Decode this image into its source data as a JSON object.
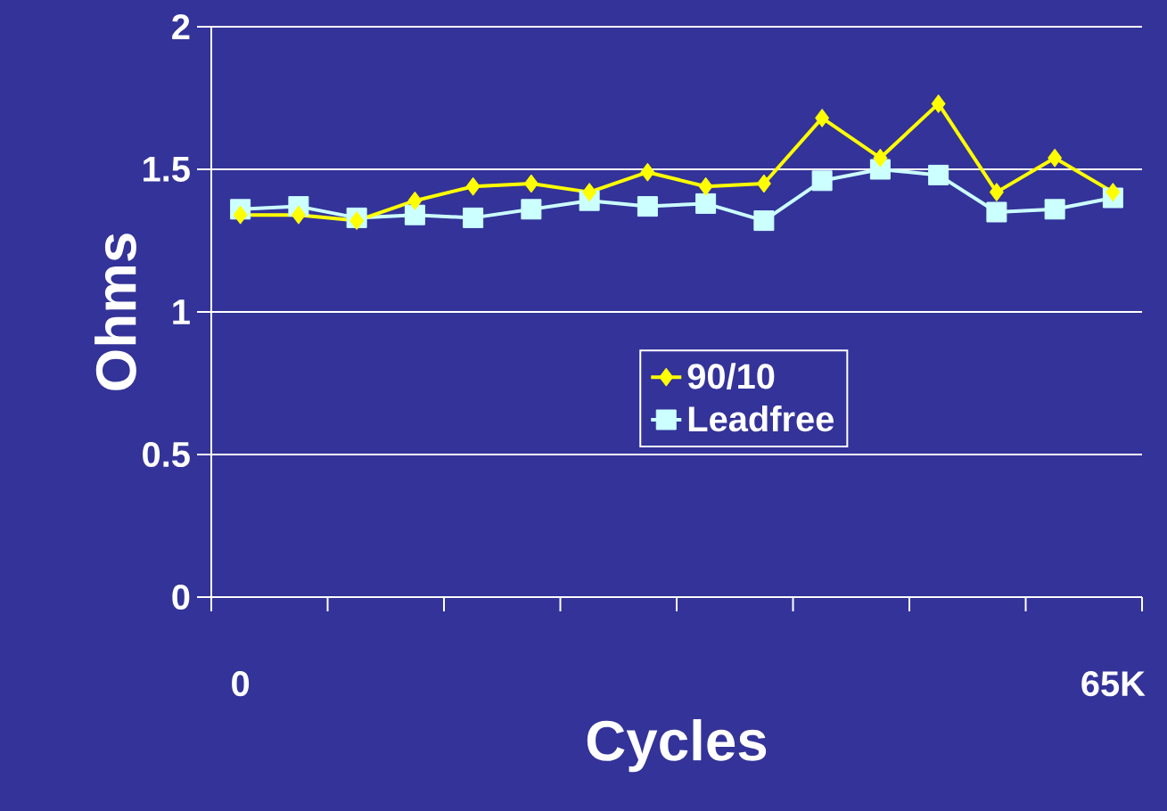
{
  "chart_data": {
    "type": "line",
    "xlabel": "Cycles",
    "ylabel": "Ohms",
    "categories": [
      "0",
      null,
      null,
      null,
      null,
      null,
      null,
      null,
      null,
      null,
      null,
      null,
      null,
      null,
      null,
      "65K"
    ],
    "series": [
      {
        "name": "90/10",
        "color": "#ffff00",
        "marker": "diamond",
        "values": [
          1.34,
          1.34,
          1.32,
          1.39,
          1.44,
          1.45,
          1.42,
          1.49,
          1.44,
          1.45,
          1.68,
          1.54,
          1.73,
          1.42,
          1.54,
          1.42
        ]
      },
      {
        "name": "Leadfree",
        "color": "#ccffff",
        "marker": "square",
        "values": [
          1.36,
          1.37,
          1.33,
          1.34,
          1.33,
          1.36,
          1.39,
          1.37,
          1.38,
          1.32,
          1.46,
          1.5,
          1.48,
          1.35,
          1.36,
          1.4
        ]
      }
    ],
    "ylim": [
      0,
      2
    ],
    "yticks": [
      0,
      0.5,
      1,
      1.5,
      2
    ],
    "grid": "y",
    "legend": "center right",
    "line_style": "solid"
  }
}
